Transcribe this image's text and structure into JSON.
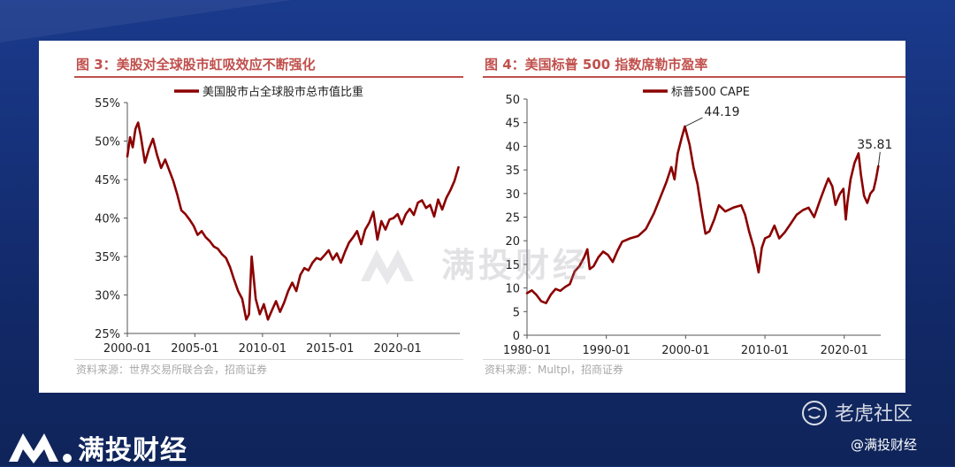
{
  "colors": {
    "line": "#8b0000",
    "title": "#c0504d",
    "background": "#16307a"
  },
  "left_figure": {
    "title": "图 3：美股对全球股市虹吸效应不断强化",
    "source": "资料来源：世界交易所联合会，招商证券",
    "watermark": "满投财经"
  },
  "right_figure": {
    "title": "图 4：美国标普 500 指数席勒市盈率",
    "source": "资料来源：Multpl，招商证券"
  },
  "chart_data": [
    {
      "type": "line",
      "title": "图 3：美股对全球股市虹吸效应不断强化",
      "xlabel": "",
      "ylabel": "",
      "x_ticks": [
        "2000-01",
        "2005-01",
        "2010-01",
        "2015-01",
        "2020-01"
      ],
      "y_ticks": [
        "25%",
        "30%",
        "35%",
        "40%",
        "45%",
        "50%",
        "55%"
      ],
      "ylim": [
        25,
        55
      ],
      "xlim": [
        2000.0,
        2024.6
      ],
      "legend_position": "top",
      "grid": false,
      "series": [
        {
          "name": "美国股市占全球股市总市值比重",
          "x": [
            2000.0,
            2000.2,
            2000.4,
            2000.6,
            2000.8,
            2001.0,
            2001.3,
            2001.6,
            2001.9,
            2002.2,
            2002.5,
            2002.8,
            2003.1,
            2003.4,
            2003.7,
            2004.0,
            2004.3,
            2004.6,
            2004.9,
            2005.2,
            2005.5,
            2005.8,
            2006.1,
            2006.4,
            2006.7,
            2007.0,
            2007.3,
            2007.6,
            2007.9,
            2008.2,
            2008.5,
            2008.8,
            2009.0,
            2009.2,
            2009.5,
            2009.8,
            2010.1,
            2010.4,
            2010.7,
            2011.0,
            2011.3,
            2011.6,
            2011.9,
            2012.2,
            2012.5,
            2012.8,
            2013.1,
            2013.4,
            2013.7,
            2014.0,
            2014.3,
            2014.6,
            2014.9,
            2015.2,
            2015.5,
            2015.8,
            2016.1,
            2016.4,
            2016.7,
            2017.0,
            2017.3,
            2017.6,
            2017.9,
            2018.2,
            2018.5,
            2018.8,
            2019.1,
            2019.4,
            2019.7,
            2020.0,
            2020.3,
            2020.6,
            2020.9,
            2021.2,
            2021.5,
            2021.8,
            2022.1,
            2022.4,
            2022.7,
            2023.0,
            2023.3,
            2023.6,
            2023.9,
            2024.2,
            2024.5
          ],
          "values": [
            48.0,
            50.5,
            49.2,
            51.6,
            52.4,
            50.6,
            47.2,
            49.0,
            50.3,
            48.2,
            46.5,
            47.6,
            46.2,
            44.8,
            43.0,
            41.0,
            40.5,
            39.8,
            39.0,
            37.8,
            38.3,
            37.5,
            37.0,
            36.3,
            36.0,
            35.3,
            34.8,
            33.6,
            32.0,
            30.5,
            29.5,
            26.8,
            27.5,
            35.0,
            29.5,
            27.5,
            28.8,
            26.8,
            28.0,
            29.2,
            27.8,
            29.0,
            30.5,
            31.6,
            30.5,
            32.6,
            33.5,
            33.2,
            34.2,
            34.8,
            34.6,
            35.2,
            35.8,
            34.6,
            35.4,
            34.2,
            35.6,
            36.8,
            37.5,
            38.3,
            36.6,
            38.5,
            39.4,
            40.8,
            37.2,
            39.6,
            38.5,
            39.8,
            40.0,
            40.5,
            39.2,
            40.5,
            41.2,
            40.4,
            42.0,
            42.3,
            41.3,
            41.7,
            40.2,
            42.4,
            41.1,
            42.6,
            43.6,
            44.8,
            46.6
          ]
        }
      ]
    },
    {
      "type": "line",
      "title": "图 4：美国标普 500 指数席勒市盈率",
      "xlabel": "",
      "ylabel": "",
      "x_ticks": [
        "1980-01",
        "1990-01",
        "2000-01",
        "2010-01",
        "2020-01"
      ],
      "y_ticks": [
        "0",
        "5",
        "10",
        "15",
        "20",
        "25",
        "30",
        "35",
        "40",
        "45",
        "50"
      ],
      "ylim": [
        0,
        50
      ],
      "xlim": [
        1980.0,
        2024.6
      ],
      "legend_position": "top",
      "grid": false,
      "annotations": [
        {
          "text": "44.19",
          "x": 1999.9,
          "y": 44.19
        },
        {
          "text": "35.81",
          "x": 2024.3,
          "y": 35.81
        }
      ],
      "series": [
        {
          "name": "标普500 CAPE",
          "x": [
            1980.0,
            1980.6,
            1981.2,
            1981.8,
            1982.4,
            1983.0,
            1983.6,
            1984.2,
            1984.8,
            1985.4,
            1986.0,
            1986.6,
            1987.2,
            1987.6,
            1987.9,
            1988.4,
            1989.0,
            1989.6,
            1990.2,
            1990.8,
            1991.4,
            1992.0,
            1993.0,
            1994.0,
            1995.0,
            1996.0,
            1997.0,
            1997.6,
            1998.2,
            1998.6,
            1999.0,
            1999.5,
            1999.9,
            2000.5,
            2001.0,
            2001.5,
            2002.0,
            2002.5,
            2003.0,
            2003.6,
            2004.2,
            2005.0,
            2006.0,
            2007.0,
            2007.5,
            2008.0,
            2008.6,
            2009.2,
            2009.6,
            2010.0,
            2010.6,
            2011.2,
            2011.8,
            2012.5,
            2013.2,
            2014.0,
            2014.8,
            2015.5,
            2016.2,
            2017.0,
            2017.6,
            2018.0,
            2018.5,
            2018.9,
            2019.4,
            2019.9,
            2020.2,
            2020.4,
            2020.8,
            2021.3,
            2021.8,
            2022.1,
            2022.5,
            2022.9,
            2023.3,
            2023.7,
            2024.0,
            2024.3
          ],
          "values": [
            8.9,
            9.5,
            8.5,
            7.2,
            6.8,
            8.6,
            9.8,
            9.4,
            10.2,
            10.8,
            13.5,
            14.6,
            16.5,
            18.2,
            14.0,
            14.6,
            16.5,
            17.7,
            17.0,
            15.5,
            17.8,
            19.8,
            20.5,
            21.0,
            22.5,
            25.8,
            30.0,
            32.5,
            35.6,
            33.0,
            38.5,
            41.8,
            44.19,
            40.3,
            35.5,
            32.0,
            26.5,
            21.5,
            22.0,
            24.5,
            27.5,
            26.2,
            27.0,
            27.5,
            25.5,
            22.0,
            18.5,
            13.3,
            18.5,
            20.5,
            21.0,
            23.2,
            20.5,
            21.8,
            23.5,
            25.5,
            26.5,
            27.0,
            25.0,
            28.8,
            31.5,
            33.2,
            31.5,
            27.6,
            29.8,
            31.0,
            24.5,
            28.0,
            33.0,
            36.5,
            38.5,
            34.0,
            29.5,
            28.0,
            30.0,
            30.8,
            33.0,
            35.81
          ]
        }
      ]
    }
  ],
  "footer": {
    "brand": "满投财经",
    "platform": "老虎社区",
    "handle": "@满投财经"
  }
}
